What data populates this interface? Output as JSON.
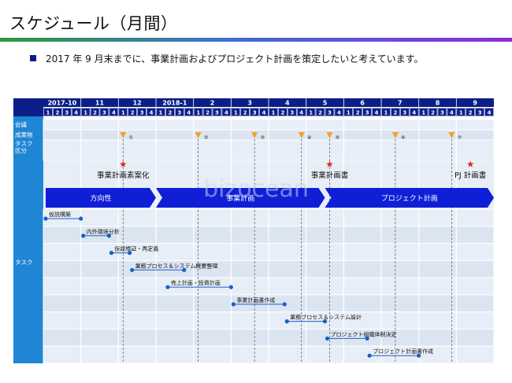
{
  "page": {
    "title": "スケジュール（月間）",
    "lead": "2017 年 9 月末までに、事業計画およびプロジェクト計画を策定したいと考えています。"
  },
  "row_labels": {
    "meeting": "会議",
    "deliverable": "成果物",
    "task_category": "タスク\n区分",
    "task": "タスク"
  },
  "months": [
    "2017-10",
    "11",
    "12",
    "2018-1",
    "2",
    "3",
    "4",
    "5",
    "6",
    "7",
    "8",
    "9"
  ],
  "weeks": [
    "1",
    "2",
    "3",
    "4"
  ],
  "milestones_numbered": [
    "①",
    "②",
    "③",
    "④",
    "⑤",
    "⑥",
    "⑦"
  ],
  "milestone_marks": [
    {
      "month_index": 2,
      "week": 1
    },
    {
      "month_index": 4,
      "week": 1
    },
    {
      "month_index": 5,
      "week": 3
    },
    {
      "month_index": 6,
      "week": 4
    },
    {
      "month_index": 7,
      "week": 3
    },
    {
      "month_index": 9,
      "week": 2
    },
    {
      "month_index": 10,
      "week": 4
    }
  ],
  "deliverables": [
    {
      "label": "事業計画素案化",
      "month_index": 2,
      "week": 1
    },
    {
      "label": "事業計画書",
      "month_index": 7,
      "week": 3
    },
    {
      "label": "PJ 計画書",
      "month_index": 11,
      "week": 2
    }
  ],
  "phases": [
    {
      "label": "方向性",
      "start_month": 0,
      "start_week": 1,
      "end_month": 2,
      "end_week": 4
    },
    {
      "label": "事業計画",
      "start_month": 3,
      "start_week": 1,
      "end_month": 7,
      "end_week": 2
    },
    {
      "label": "プロジェクト計画",
      "start_month": 7,
      "start_week": 3,
      "end_month": 11,
      "end_week": 4
    }
  ],
  "tasks": [
    {
      "label": "仮説構築",
      "start": 0,
      "end": 4.0
    },
    {
      "label": "内外環境分析",
      "start": 4.0,
      "end": 7.0
    },
    {
      "label": "仮説検証・再定義",
      "start": 7.0,
      "end": 9.2
    },
    {
      "label": "業務プロセス＆システム概要整理",
      "start": 9.2,
      "end": 15.0
    },
    {
      "label": "売上計画・投資計画",
      "start": 13.0,
      "end": 20.0
    },
    {
      "label": "事業計画書作成",
      "start": 20.0,
      "end": 25.7
    },
    {
      "label": "業務プロセス＆システム設計",
      "start": 25.7,
      "end": 30.0
    },
    {
      "label": "プロジェクト組織体制決定",
      "start": 30.0,
      "end": 34.5
    },
    {
      "label": "プロジェクト計画書作成",
      "start": 34.5,
      "end": 40.0
    }
  ],
  "colors": {
    "header": "#0c1f88",
    "label_col": "#1f86d6",
    "row_light": "#e8eef7",
    "row_alt": "#dbe5f2",
    "phase": "#0f1fd6",
    "star": "#e02020",
    "triangle": "#f0a12a",
    "dot": "#1a5ec9"
  },
  "watermark": "bizocean"
}
